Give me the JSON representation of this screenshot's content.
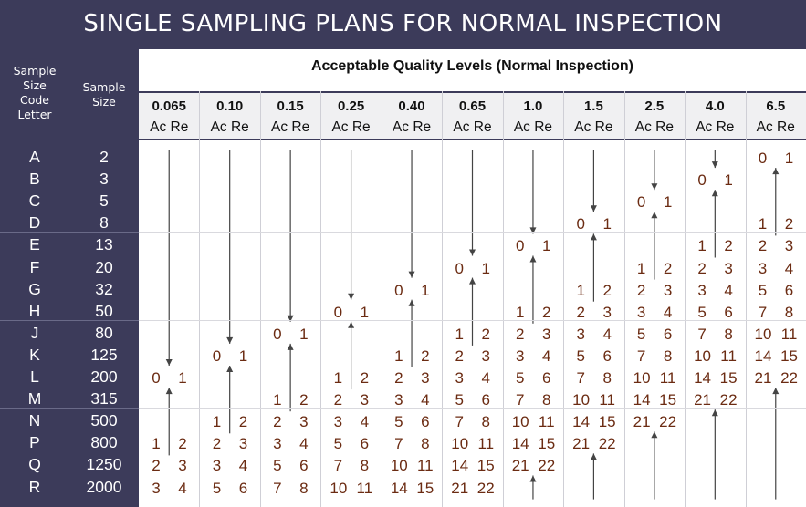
{
  "title": "SINGLE SAMPLING PLANS FOR NORMAL INSPECTION",
  "header": {
    "code_letter_label": [
      "Sample",
      "Size",
      "Code",
      "Letter"
    ],
    "sample_size_label": [
      "Sample",
      "Size"
    ],
    "aql_title": "Acceptable Quality Levels (Normal Inspection)",
    "ac_re_label": "Ac Re"
  },
  "aql_levels": [
    "0.065",
    "0.10",
    "0.15",
    "0.25",
    "0.40",
    "0.65",
    "1.0",
    "1.5",
    "2.5",
    "4.0",
    "6.5"
  ],
  "code_letters": [
    "A",
    "B",
    "C",
    "D",
    "E",
    "F",
    "G",
    "H",
    "J",
    "K",
    "L",
    "M",
    "N",
    "P",
    "Q",
    "R"
  ],
  "sample_sizes": [
    "2",
    "3",
    "5",
    "8",
    "13",
    "20",
    "32",
    "50",
    "80",
    "125",
    "200",
    "315",
    "500",
    "800",
    "1250",
    "2000"
  ],
  "table": [
    [
      null,
      null,
      null,
      null,
      null,
      null,
      null,
      null,
      null,
      null,
      [
        "0",
        "1"
      ]
    ],
    [
      null,
      null,
      null,
      null,
      null,
      null,
      null,
      null,
      null,
      [
        "0",
        "1"
      ],
      null
    ],
    [
      null,
      null,
      null,
      null,
      null,
      null,
      null,
      null,
      [
        "0",
        "1"
      ],
      null,
      null
    ],
    [
      null,
      null,
      null,
      null,
      null,
      null,
      null,
      [
        "0",
        "1"
      ],
      null,
      null,
      [
        "1",
        "2"
      ]
    ],
    [
      null,
      null,
      null,
      null,
      null,
      null,
      [
        "0",
        "1"
      ],
      null,
      null,
      [
        "1",
        "2"
      ],
      [
        "2",
        "3"
      ]
    ],
    [
      null,
      null,
      null,
      null,
      null,
      [
        "0",
        "1"
      ],
      null,
      null,
      [
        "1",
        "2"
      ],
      [
        "2",
        "3"
      ],
      [
        "3",
        "4"
      ]
    ],
    [
      null,
      null,
      null,
      null,
      [
        "0",
        "1"
      ],
      null,
      null,
      [
        "1",
        "2"
      ],
      [
        "2",
        "3"
      ],
      [
        "3",
        "4"
      ],
      [
        "5",
        "6"
      ]
    ],
    [
      null,
      null,
      null,
      [
        "0",
        "1"
      ],
      null,
      null,
      [
        "1",
        "2"
      ],
      [
        "2",
        "3"
      ],
      [
        "3",
        "4"
      ],
      [
        "5",
        "6"
      ],
      [
        "7",
        "8"
      ]
    ],
    [
      null,
      null,
      [
        "0",
        "1"
      ],
      null,
      null,
      [
        "1",
        "2"
      ],
      [
        "2",
        "3"
      ],
      [
        "3",
        "4"
      ],
      [
        "5",
        "6"
      ],
      [
        "7",
        "8"
      ],
      [
        "10",
        "11"
      ]
    ],
    [
      null,
      [
        "0",
        "1"
      ],
      null,
      null,
      [
        "1",
        "2"
      ],
      [
        "2",
        "3"
      ],
      [
        "3",
        "4"
      ],
      [
        "5",
        "6"
      ],
      [
        "7",
        "8"
      ],
      [
        "10",
        "11"
      ],
      [
        "14",
        "15"
      ]
    ],
    [
      [
        "0",
        "1"
      ],
      null,
      null,
      [
        "1",
        "2"
      ],
      [
        "2",
        "3"
      ],
      [
        "3",
        "4"
      ],
      [
        "5",
        "6"
      ],
      [
        "7",
        "8"
      ],
      [
        "10",
        "11"
      ],
      [
        "14",
        "15"
      ],
      [
        "21",
        "22"
      ]
    ],
    [
      null,
      null,
      [
        "1",
        "2"
      ],
      [
        "2",
        "3"
      ],
      [
        "3",
        "4"
      ],
      [
        "5",
        "6"
      ],
      [
        "7",
        "8"
      ],
      [
        "10",
        "11"
      ],
      [
        "14",
        "15"
      ],
      [
        "21",
        "22"
      ],
      null
    ],
    [
      null,
      [
        "1",
        "2"
      ],
      [
        "2",
        "3"
      ],
      [
        "3",
        "4"
      ],
      [
        "5",
        "6"
      ],
      [
        "7",
        "8"
      ],
      [
        "10",
        "11"
      ],
      [
        "14",
        "15"
      ],
      [
        "21",
        "22"
      ],
      null,
      null
    ],
    [
      [
        "1",
        "2"
      ],
      [
        "2",
        "3"
      ],
      [
        "3",
        "4"
      ],
      [
        "5",
        "6"
      ],
      [
        "7",
        "8"
      ],
      [
        "10",
        "11"
      ],
      [
        "14",
        "15"
      ],
      [
        "21",
        "22"
      ],
      null,
      null,
      null
    ],
    [
      [
        "2",
        "3"
      ],
      [
        "3",
        "4"
      ],
      [
        "5",
        "6"
      ],
      [
        "7",
        "8"
      ],
      [
        "10",
        "11"
      ],
      [
        "14",
        "15"
      ],
      [
        "21",
        "22"
      ],
      null,
      null,
      null,
      null
    ],
    [
      [
        "3",
        "4"
      ],
      [
        "5",
        "6"
      ],
      [
        "7",
        "8"
      ],
      [
        "10",
        "11"
      ],
      [
        "14",
        "15"
      ],
      [
        "21",
        "22"
      ],
      null,
      null,
      null,
      null,
      null
    ]
  ],
  "arrows": [
    {
      "col": 0,
      "dir": "down",
      "from_row": 0,
      "to_row": 10
    },
    {
      "col": 0,
      "dir": "up",
      "from_row": 13,
      "to_row": 10
    },
    {
      "col": 1,
      "dir": "down",
      "from_row": 0,
      "to_row": 9
    },
    {
      "col": 1,
      "dir": "up",
      "from_row": 12,
      "to_row": 9
    },
    {
      "col": 2,
      "dir": "down",
      "from_row": 0,
      "to_row": 8
    },
    {
      "col": 2,
      "dir": "up",
      "from_row": 11,
      "to_row": 8
    },
    {
      "col": 3,
      "dir": "down",
      "from_row": 0,
      "to_row": 7
    },
    {
      "col": 3,
      "dir": "up",
      "from_row": 10,
      "to_row": 7
    },
    {
      "col": 4,
      "dir": "down",
      "from_row": 0,
      "to_row": 6
    },
    {
      "col": 4,
      "dir": "up",
      "from_row": 9,
      "to_row": 6
    },
    {
      "col": 5,
      "dir": "down",
      "from_row": 0,
      "to_row": 5
    },
    {
      "col": 5,
      "dir": "up",
      "from_row": 8,
      "to_row": 5
    },
    {
      "col": 6,
      "dir": "down",
      "from_row": 0,
      "to_row": 4
    },
    {
      "col": 6,
      "dir": "up",
      "from_row": 7,
      "to_row": 4
    },
    {
      "col": 6,
      "dir": "up",
      "from_row": 15,
      "to_row": 14
    },
    {
      "col": 7,
      "dir": "down",
      "from_row": 0,
      "to_row": 3
    },
    {
      "col": 7,
      "dir": "up",
      "from_row": 6,
      "to_row": 3
    },
    {
      "col": 7,
      "dir": "up",
      "from_row": 15,
      "to_row": 13
    },
    {
      "col": 8,
      "dir": "down",
      "from_row": 0,
      "to_row": 2
    },
    {
      "col": 8,
      "dir": "up",
      "from_row": 5,
      "to_row": 2
    },
    {
      "col": 8,
      "dir": "up",
      "from_row": 15,
      "to_row": 12
    },
    {
      "col": 9,
      "dir": "down",
      "from_row": 0,
      "to_row": 1
    },
    {
      "col": 9,
      "dir": "up",
      "from_row": 4,
      "to_row": 1
    },
    {
      "col": 9,
      "dir": "up",
      "from_row": 15,
      "to_row": 11
    },
    {
      "col": 10,
      "dir": "up",
      "from_row": 3,
      "to_row": 0
    },
    {
      "col": 10,
      "dir": "up",
      "from_row": 15,
      "to_row": 10
    }
  ],
  "colors": {
    "background": "#3c3b5a",
    "panel": "#ffffff",
    "cell_text": "#6b2b12",
    "arrow": "#444444"
  }
}
